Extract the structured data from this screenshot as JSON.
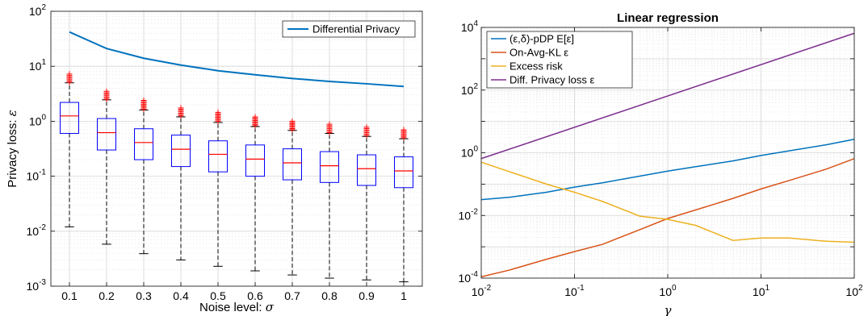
{
  "chart_data": [
    {
      "type": "box",
      "xlabel_text": "Noise level: ",
      "xlabel_symbol": "σ",
      "ylabel_text": "Privacy loss: ",
      "ylabel_symbol": "ε",
      "yscale": "log",
      "ylim": [
        0.001,
        100
      ],
      "y_tick_labels": [
        "10-3",
        "10-2",
        "10-1",
        "100",
        "101",
        "102"
      ],
      "grid": true,
      "legend_position": "top-right",
      "categories": [
        "0.1",
        "0.2",
        "0.3",
        "0.4",
        "0.5",
        "0.6",
        "0.7",
        "0.8",
        "0.9",
        "1"
      ],
      "boxes": [
        {
          "median": 1.25,
          "q1": 0.6,
          "q3": 2.2,
          "whisker_low": 0.012,
          "whisker_high": 5.0,
          "outlier_low": 5.1,
          "outlier_high": 7.2
        },
        {
          "median": 0.62,
          "q1": 0.3,
          "q3": 1.12,
          "whisker_low": 0.0058,
          "whisker_high": 2.45,
          "outlier_low": 2.5,
          "outlier_high": 3.5
        },
        {
          "median": 0.41,
          "q1": 0.2,
          "q3": 0.73,
          "whisker_low": 0.0039,
          "whisker_high": 1.6,
          "outlier_low": 1.65,
          "outlier_high": 2.4
        },
        {
          "median": 0.31,
          "q1": 0.15,
          "q3": 0.56,
          "whisker_low": 0.003,
          "whisker_high": 1.2,
          "outlier_low": 1.25,
          "outlier_high": 1.75
        },
        {
          "median": 0.25,
          "q1": 0.12,
          "q3": 0.44,
          "whisker_low": 0.0023,
          "whisker_high": 0.95,
          "outlier_low": 1.0,
          "outlier_high": 1.45
        },
        {
          "median": 0.205,
          "q1": 0.1,
          "q3": 0.37,
          "whisker_low": 0.0019,
          "whisker_high": 0.8,
          "outlier_low": 0.83,
          "outlier_high": 1.2
        },
        {
          "median": 0.175,
          "q1": 0.086,
          "q3": 0.315,
          "whisker_low": 0.0016,
          "whisker_high": 0.68,
          "outlier_low": 0.7,
          "outlier_high": 1.0
        },
        {
          "median": 0.155,
          "q1": 0.077,
          "q3": 0.28,
          "whisker_low": 0.0014,
          "whisker_high": 0.6,
          "outlier_low": 0.62,
          "outlier_high": 0.88
        },
        {
          "median": 0.137,
          "q1": 0.068,
          "q3": 0.245,
          "whisker_low": 0.0013,
          "whisker_high": 0.53,
          "outlier_low": 0.55,
          "outlier_high": 0.78
        },
        {
          "median": 0.125,
          "q1": 0.062,
          "q3": 0.225,
          "whisker_low": 0.0012,
          "whisker_high": 0.48,
          "outlier_low": 0.5,
          "outlier_high": 0.7
        }
      ],
      "series": [
        {
          "name": "Differential Privacy",
          "color": "#0072bd",
          "values": [
            42,
            21,
            14,
            10.5,
            8.3,
            7.0,
            6.0,
            5.3,
            4.8,
            4.3
          ]
        }
      ],
      "box_color": "#0000ff",
      "median_color": "#ff0000",
      "outlier_color": "#ff0000"
    },
    {
      "type": "line",
      "title": "Linear regression",
      "xlabel_symbol": "γ",
      "xscale": "log",
      "yscale": "log",
      "xlim": [
        0.01,
        100
      ],
      "ylim": [
        0.0001,
        10000
      ],
      "x_tick_labels": [
        "10-2",
        "10-1",
        "100",
        "101",
        "102"
      ],
      "y_tick_labels": [
        "10-4",
        "10-2",
        "100",
        "102",
        "104"
      ],
      "grid": true,
      "legend_position": "top-left",
      "series": [
        {
          "name": "(ε,δ)-pDP E[ε]",
          "color": "#0072bd",
          "x": [
            0.01,
            0.02,
            0.05,
            0.1,
            0.2,
            0.5,
            1,
            2,
            5,
            10,
            20,
            50,
            100
          ],
          "y": [
            0.032,
            0.038,
            0.055,
            0.08,
            0.11,
            0.18,
            0.26,
            0.36,
            0.55,
            0.82,
            1.15,
            1.8,
            2.7
          ]
        },
        {
          "name": "On-Avg-KL ε",
          "color": "#d95319",
          "x": [
            0.01,
            0.02,
            0.05,
            0.1,
            0.2,
            0.5,
            1,
            2,
            5,
            10,
            20,
            50,
            100
          ],
          "y": [
            0.00011,
            0.00018,
            0.0004,
            0.0007,
            0.0012,
            0.0035,
            0.008,
            0.015,
            0.035,
            0.07,
            0.13,
            0.3,
            0.65
          ]
        },
        {
          "name": "Excess risk",
          "color": "#edb120",
          "x": [
            0.01,
            0.02,
            0.05,
            0.1,
            0.2,
            0.5,
            1,
            2,
            5,
            10,
            20,
            50,
            100
          ],
          "y": [
            0.5,
            0.25,
            0.1,
            0.055,
            0.028,
            0.0095,
            0.0075,
            0.0048,
            0.0016,
            0.0019,
            0.0019,
            0.0015,
            0.0014
          ]
        },
        {
          "name": "Diff. Privacy loss ε",
          "color": "#7e2f8e",
          "x": [
            0.01,
            100
          ],
          "y": [
            0.65,
            6500
          ]
        }
      ]
    }
  ]
}
